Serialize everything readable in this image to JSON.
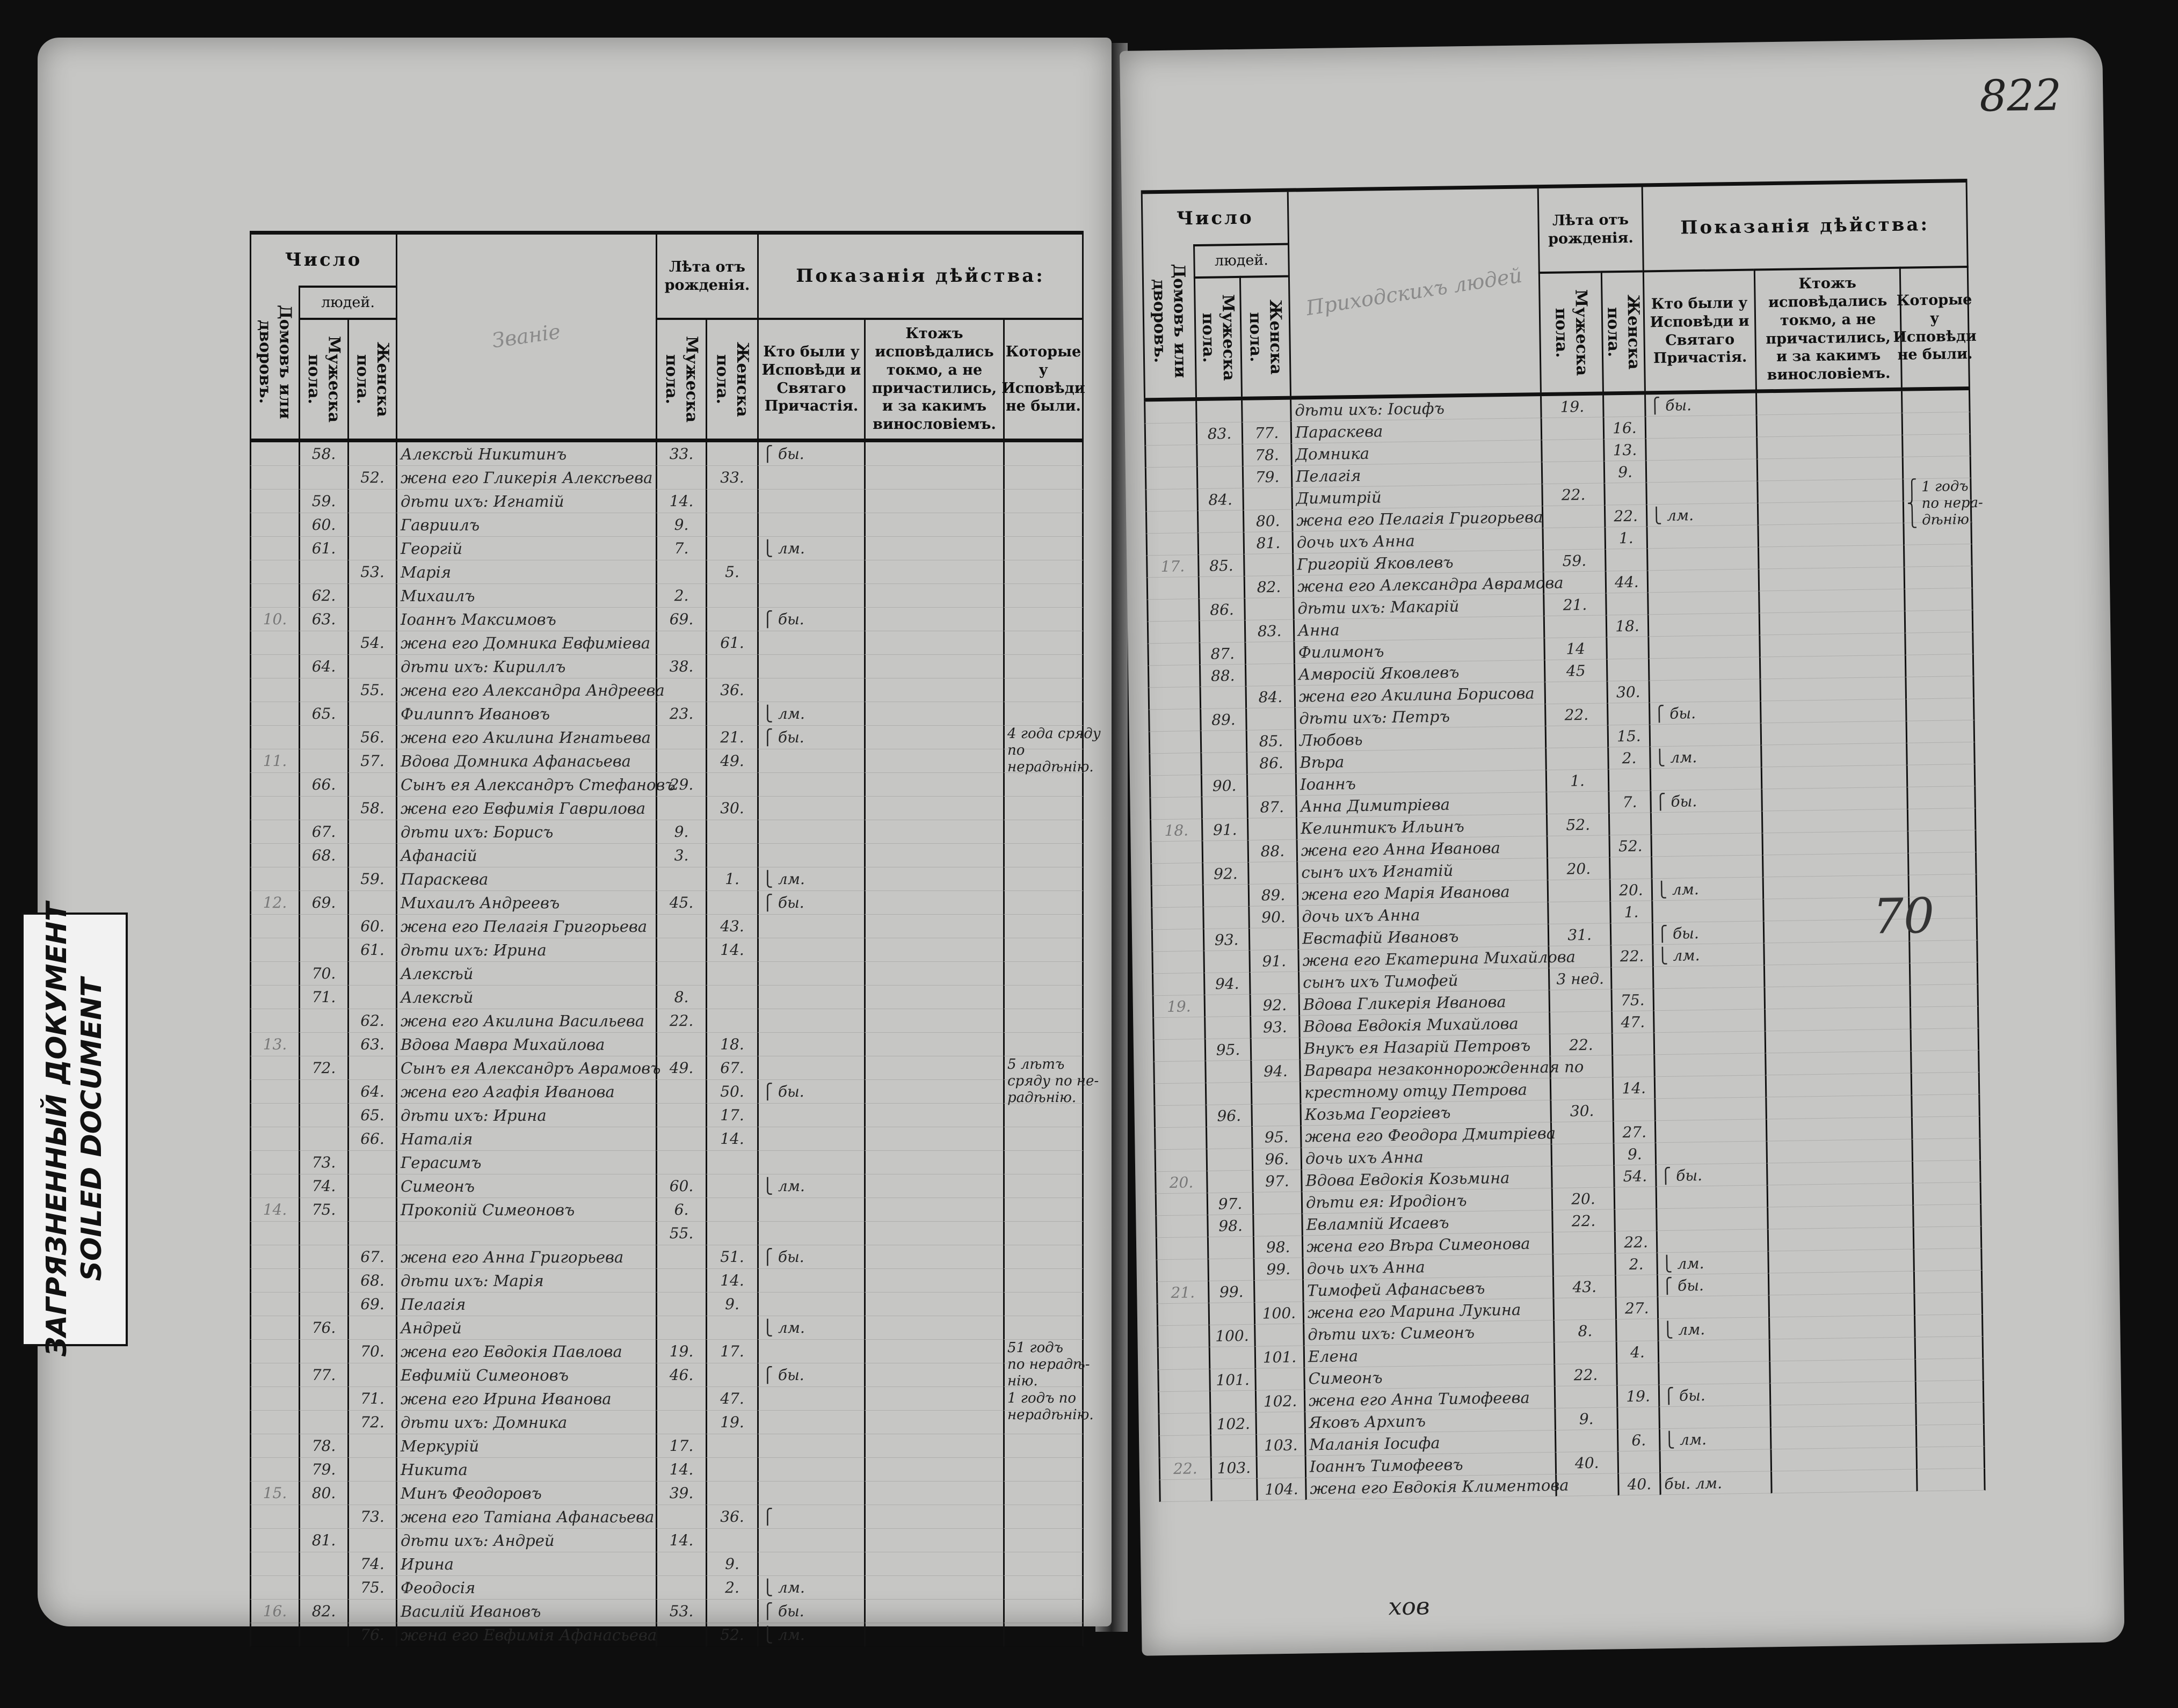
{
  "stamp": {
    "line1": "ЗАГРЯЗНЕННЫЙ ДОКУМЕНТ",
    "line2": "SOILED DOCUMENT"
  },
  "header": {
    "chislo": "Число",
    "lyudey": "людей.",
    "domov": "Домовъ или дворовъ.",
    "muzh_pola": "Мужеска пола.",
    "zhen_pola": "Женска пола.",
    "leta": "Лѣта отъ рожденія.",
    "age_m": "Мужеска пола.",
    "age_f": "Женска пола.",
    "pokazaniya": "Показанія дѣйства:",
    "col_kto": "Кто были у Исповѣди и Святаго Причастія.",
    "col_ktozh": "Ктожъ исповѣдались токмо, а не причастились, и за какимъ винословіемъ.",
    "col_kotorye": "Которые у Исповѣди не были."
  },
  "left_page": {
    "name_header": "Званіе",
    "rows": [
      {
        "h": "",
        "m": "58.",
        "f": "",
        "name": "Алексѣй Никитинъ",
        "ma": "33.",
        "fa": ""
      },
      {
        "h": "",
        "m": "",
        "f": "52.",
        "name": "жена его Гликерія Алексѣева",
        "ma": "",
        "fa": "33."
      },
      {
        "h": "",
        "m": "59.",
        "f": "",
        "name": "дѣти ихъ: Игнатій",
        "ma": "14.",
        "fa": ""
      },
      {
        "h": "",
        "m": "60.",
        "f": "",
        "name": "Гавриилъ",
        "ma": "9.",
        "fa": ""
      },
      {
        "h": "",
        "m": "61.",
        "f": "",
        "name": "Георгій",
        "ma": "7.",
        "fa": ""
      },
      {
        "h": "",
        "m": "",
        "f": "53.",
        "name": "Марія",
        "ma": "",
        "fa": "5."
      },
      {
        "h": "",
        "m": "62.",
        "f": "",
        "name": "Михаилъ",
        "ma": "2.",
        "fa": ""
      },
      {
        "h": "10.",
        "m": "63.",
        "f": "",
        "name": "Іоаннъ Максимовъ",
        "ma": "69.",
        "fa": ""
      },
      {
        "h": "",
        "m": "",
        "f": "54.",
        "name": "жена его Домника Евфиміева",
        "ma": "",
        "fa": "61."
      },
      {
        "h": "",
        "m": "64.",
        "f": "",
        "name": "дѣти ихъ: Кириллъ",
        "ma": "38.",
        "fa": ""
      },
      {
        "h": "",
        "m": "",
        "f": "55.",
        "name": "жена его Александра Андреева",
        "ma": "",
        "fa": "36."
      },
      {
        "h": "",
        "m": "65.",
        "f": "",
        "name": "Филиппъ Ивановъ",
        "ma": "23.",
        "fa": ""
      },
      {
        "h": "",
        "m": "",
        "f": "56.",
        "name": "жена его Акилина Игнатьева",
        "ma": "",
        "fa": "21."
      },
      {
        "h": "11.",
        "m": "",
        "f": "57.",
        "name": "Вдова Домника Афанасьева",
        "ma": "",
        "fa": "49."
      },
      {
        "h": "",
        "m": "66.",
        "f": "",
        "name": "Сынъ ея Александръ Стефановъ",
        "ma": "29.",
        "fa": ""
      },
      {
        "h": "",
        "m": "",
        "f": "58.",
        "name": "жена его Евфимія Гаврилова",
        "ma": "",
        "fa": "30."
      },
      {
        "h": "",
        "m": "67.",
        "f": "",
        "name": "дѣти ихъ: Борисъ",
        "ma": "9.",
        "fa": ""
      },
      {
        "h": "",
        "m": "68.",
        "f": "",
        "name": "Афанасій",
        "ma": "3.",
        "fa": ""
      },
      {
        "h": "",
        "m": "",
        "f": "59.",
        "name": "Параскева",
        "ma": "",
        "fa": "1."
      },
      {
        "h": "12.",
        "m": "69.",
        "f": "",
        "name": "Михаилъ Андреевъ",
        "ma": "45.",
        "fa": ""
      },
      {
        "h": "",
        "m": "",
        "f": "60.",
        "name": "жена его Пелагія Григорьева",
        "ma": "",
        "fa": "43."
      },
      {
        "h": "",
        "m": "",
        "f": "61.",
        "name": "дѣти ихъ: Ирина",
        "ma": "",
        "fa": "14."
      },
      {
        "h": "",
        "m": "70.",
        "f": "",
        "name": "Алексѣй",
        "ma": "",
        "fa": ""
      },
      {
        "h": "",
        "m": "71.",
        "f": "",
        "name": "Алексѣй",
        "ma": "8.",
        "fa": ""
      },
      {
        "h": "",
        "m": "",
        "f": "62.",
        "name": "жена его Акилина Васильева",
        "ma": "22.",
        "fa": ""
      },
      {
        "h": "13.",
        "m": "",
        "f": "63.",
        "name": "Вдова Мавра Михайлова",
        "ma": "",
        "fa": "18."
      },
      {
        "h": "",
        "m": "72.",
        "f": "",
        "name": "Сынъ ея Александръ Аврамовъ",
        "ma": "49.",
        "fa": "67."
      },
      {
        "h": "",
        "m": "",
        "f": "64.",
        "name": "жена его Агафія Иванова",
        "ma": "",
        "fa": "50."
      },
      {
        "h": "",
        "m": "",
        "f": "65.",
        "name": "дѣти ихъ: Ирина",
        "ma": "",
        "fa": "17."
      },
      {
        "h": "",
        "m": "",
        "f": "66.",
        "name": "Наталія",
        "ma": "",
        "fa": "14."
      },
      {
        "h": "",
        "m": "73.",
        "f": "",
        "name": "Герасимъ",
        "ma": "",
        "fa": ""
      },
      {
        "h": "",
        "m": "74.",
        "f": "",
        "name": "Симеонъ",
        "ma": "60.",
        "fa": ""
      },
      {
        "h": "14.",
        "m": "75.",
        "f": "",
        "name": "Прокопій Симеоновъ",
        "ma": "6.",
        "fa": ""
      },
      {
        "h": "",
        "m": "",
        "f": "",
        "name": "",
        "ma": "55.",
        "fa": ""
      },
      {
        "h": "",
        "m": "",
        "f": "67.",
        "name": "жена его Анна Григорьева",
        "ma": "",
        "fa": "51."
      },
      {
        "h": "",
        "m": "",
        "f": "68.",
        "name": "дѣти ихъ: Марія",
        "ma": "",
        "fa": "14."
      },
      {
        "h": "",
        "m": "",
        "f": "69.",
        "name": "Пелагія",
        "ma": "",
        "fa": "9."
      },
      {
        "h": "",
        "m": "76.",
        "f": "",
        "name": "Андрей",
        "ma": "",
        "fa": ""
      },
      {
        "h": "",
        "m": "",
        "f": "70.",
        "name": "жена его Евдокія Павлова",
        "ma": "19.",
        "fa": "17."
      },
      {
        "h": "",
        "m": "77.",
        "f": "",
        "name": "Евфимій Симеоновъ",
        "ma": "46.",
        "fa": ""
      },
      {
        "h": "",
        "m": "",
        "f": "71.",
        "name": "жена его Ирина Иванова",
        "ma": "",
        "fa": "47."
      },
      {
        "h": "",
        "m": "",
        "f": "72.",
        "name": "дѣти ихъ: Домника",
        "ma": "",
        "fa": "19."
      },
      {
        "h": "",
        "m": "78.",
        "f": "",
        "name": "Меркурій",
        "ma": "17.",
        "fa": ""
      },
      {
        "h": "",
        "m": "79.",
        "f": "",
        "name": "Никита",
        "ma": "14.",
        "fa": ""
      },
      {
        "h": "15.",
        "m": "80.",
        "f": "",
        "name": "Минъ Феодоровъ",
        "ma": "39.",
        "fa": ""
      },
      {
        "h": "",
        "m": "",
        "f": "73.",
        "name": "жена его Татіана Афанасьева",
        "ma": "",
        "fa": "36."
      },
      {
        "h": "",
        "m": "81.",
        "f": "",
        "name": "дѣти ихъ: Андрей",
        "ma": "14.",
        "fa": ""
      },
      {
        "h": "",
        "m": "",
        "f": "74.",
        "name": "Ирина",
        "ma": "",
        "fa": "9."
      },
      {
        "h": "",
        "m": "",
        "f": "75.",
        "name": "Феодосія",
        "ma": "",
        "fa": "2."
      },
      {
        "h": "16.",
        "m": "82.",
        "f": "",
        "name": "Василій Ивановъ",
        "ma": "53.",
        "fa": ""
      },
      {
        "h": "",
        "m": "",
        "f": "76.",
        "name": "жена его Евфимія Афанасьева",
        "ma": "",
        "fa": "52."
      }
    ],
    "marks": [
      {
        "row": 0,
        "text": "⎧ бы."
      },
      {
        "row": 4,
        "text": "⎩ лм."
      },
      {
        "row": 7,
        "text": "⎧ бы."
      },
      {
        "row": 11,
        "text": "⎩ лм."
      },
      {
        "row": 12,
        "text": "⎧ бы."
      },
      {
        "row": 18,
        "text": "⎩ лм."
      },
      {
        "row": 19,
        "text": "⎧ бы."
      },
      {
        "row": 27,
        "text": "⎧ бы."
      },
      {
        "row": 31,
        "text": "⎩ лм."
      },
      {
        "row": 34,
        "text": "⎧ бы."
      },
      {
        "row": 37,
        "text": "⎩ лм."
      },
      {
        "row": 39,
        "text": "⎧ бы."
      },
      {
        "row": 45,
        "text": "⎧"
      },
      {
        "row": 48,
        "text": "⎩ лм."
      },
      {
        "row": 49,
        "text": "⎧ бы."
      },
      {
        "row": 50,
        "text": "⎩ лм."
      }
    ],
    "notes": [
      {
        "row": 12,
        "text": "4 года сряду\nпо нерадѣнію."
      },
      {
        "row": 26,
        "text": "5 лѣтъ\nсряду по не-\nрадѣнію."
      },
      {
        "row": 38,
        "text": "51 годъ\nпо нерадѣ-\nнію.\n1 годъ по\nнерадѣнію."
      }
    ]
  },
  "right_page": {
    "page_number": "822",
    "name_header": "Приходскихъ людей",
    "center_mark": "70",
    "footer_mark": "хов",
    "rows": [
      {
        "h": "",
        "m": "",
        "f": "",
        "name": "дѣти ихъ: Іосифъ",
        "ma": "19.",
        "fa": ""
      },
      {
        "h": "",
        "m": "83.",
        "f": "77.",
        "name": "Параскева",
        "ma": "",
        "fa": "16."
      },
      {
        "h": "",
        "m": "",
        "f": "78.",
        "name": "Домника",
        "ma": "",
        "fa": "13."
      },
      {
        "h": "",
        "m": "",
        "f": "79.",
        "name": "Пелагія",
        "ma": "",
        "fa": "9."
      },
      {
        "h": "",
        "m": "84.",
        "f": "",
        "name": "Димитрій",
        "ma": "22.",
        "fa": ""
      },
      {
        "h": "",
        "m": "",
        "f": "80.",
        "name": "жена его Пелагія Григорьева",
        "ma": "",
        "fa": "22."
      },
      {
        "h": "",
        "m": "",
        "f": "81.",
        "name": "дочь ихъ Анна",
        "ma": "",
        "fa": "1."
      },
      {
        "h": "17.",
        "m": "85.",
        "f": "",
        "name": "Григорій Яковлевъ",
        "ma": "59.",
        "fa": ""
      },
      {
        "h": "",
        "m": "",
        "f": "82.",
        "name": "жена его Александра Аврамова",
        "ma": "",
        "fa": "44."
      },
      {
        "h": "",
        "m": "86.",
        "f": "",
        "name": "дѣти ихъ: Макарій",
        "ma": "21.",
        "fa": ""
      },
      {
        "h": "",
        "m": "",
        "f": "83.",
        "name": "Анна",
        "ma": "",
        "fa": "18."
      },
      {
        "h": "",
        "m": "87.",
        "f": "",
        "name": "Филимонъ",
        "ma": "14",
        "fa": ""
      },
      {
        "h": "",
        "m": "88.",
        "f": "",
        "name": "Амвросій Яковлевъ",
        "ma": "45",
        "fa": ""
      },
      {
        "h": "",
        "m": "",
        "f": "84.",
        "name": "жена его Акилина Борисова",
        "ma": "",
        "fa": "30."
      },
      {
        "h": "",
        "m": "89.",
        "f": "",
        "name": "дѣти ихъ: Петръ",
        "ma": "22.",
        "fa": ""
      },
      {
        "h": "",
        "m": "",
        "f": "85.",
        "name": "Любовь",
        "ma": "",
        "fa": "15."
      },
      {
        "h": "",
        "m": "",
        "f": "86.",
        "name": "Вѣра",
        "ma": "",
        "fa": "2."
      },
      {
        "h": "",
        "m": "90.",
        "f": "",
        "name": "Іоаннъ",
        "ma": "1.",
        "fa": ""
      },
      {
        "h": "",
        "m": "",
        "f": "87.",
        "name": "Анна Димитріева",
        "ma": "",
        "fa": "7."
      },
      {
        "h": "18.",
        "m": "91.",
        "f": "",
        "name": "Келинтикъ Ильинъ",
        "ma": "52.",
        "fa": ""
      },
      {
        "h": "",
        "m": "",
        "f": "88.",
        "name": "жена его Анна Иванова",
        "ma": "",
        "fa": "52."
      },
      {
        "h": "",
        "m": "92.",
        "f": "",
        "name": "сынъ ихъ Игнатій",
        "ma": "20.",
        "fa": ""
      },
      {
        "h": "",
        "m": "",
        "f": "89.",
        "name": "жена его Марія Иванова",
        "ma": "",
        "fa": "20."
      },
      {
        "h": "",
        "m": "",
        "f": "90.",
        "name": "дочь ихъ Анна",
        "ma": "",
        "fa": "1."
      },
      {
        "h": "",
        "m": "93.",
        "f": "",
        "name": "Евстафій Ивановъ",
        "ma": "31.",
        "fa": ""
      },
      {
        "h": "",
        "m": "",
        "f": "91.",
        "name": "жена его Екатерина Михайлова",
        "ma": "",
        "fa": "22."
      },
      {
        "h": "",
        "m": "94.",
        "f": "",
        "name": "сынъ ихъ Тимофей",
        "ma": "3 нед.",
        "fa": ""
      },
      {
        "h": "19.",
        "m": "",
        "f": "92.",
        "name": "Вдова Гликерія Иванова",
        "ma": "",
        "fa": "75."
      },
      {
        "h": "",
        "m": "",
        "f": "93.",
        "name": "Вдова Евдокія Михайлова",
        "ma": "",
        "fa": "47."
      },
      {
        "h": "",
        "m": "95.",
        "f": "",
        "name": "Внукъ ея Назарій Петровъ",
        "ma": "22.",
        "fa": ""
      },
      {
        "h": "",
        "m": "",
        "f": "94.",
        "name": "Варвара незаконнорожденная по",
        "ma": "",
        "fa": ""
      },
      {
        "h": "",
        "m": "",
        "f": "",
        "name": "крестному отцу Петрова",
        "ma": "",
        "fa": "14."
      },
      {
        "h": "",
        "m": "96.",
        "f": "",
        "name": "Козьма Георгіевъ",
        "ma": "30.",
        "fa": ""
      },
      {
        "h": "",
        "m": "",
        "f": "95.",
        "name": "жена его Феодора Дмитріева",
        "ma": "",
        "fa": "27."
      },
      {
        "h": "",
        "m": "",
        "f": "96.",
        "name": "дочь ихъ Анна",
        "ma": "",
        "fa": "9."
      },
      {
        "h": "20.",
        "m": "",
        "f": "97.",
        "name": "Вдова Евдокія Козьмина",
        "ma": "",
        "fa": "54."
      },
      {
        "h": "",
        "m": "97.",
        "f": "",
        "name": "дѣти ея: Иродіонъ",
        "ma": "20.",
        "fa": ""
      },
      {
        "h": "",
        "m": "98.",
        "f": "",
        "name": "Евлампій Исаевъ",
        "ma": "22.",
        "fa": ""
      },
      {
        "h": "",
        "m": "",
        "f": "98.",
        "name": "жена его Вѣра Симеонова",
        "ma": "",
        "fa": "22."
      },
      {
        "h": "",
        "m": "",
        "f": "99.",
        "name": "дочь ихъ Анна",
        "ma": "",
        "fa": "2."
      },
      {
        "h": "21.",
        "m": "99.",
        "f": "",
        "name": "Тимофей Афанасьевъ",
        "ma": "43.",
        "fa": ""
      },
      {
        "h": "",
        "m": "",
        "f": "100.",
        "name": "жена его Марина Лукина",
        "ma": "",
        "fa": "27."
      },
      {
        "h": "",
        "m": "100.",
        "f": "",
        "name": "дѣти ихъ: Симеонъ",
        "ma": "8.",
        "fa": ""
      },
      {
        "h": "",
        "m": "",
        "f": "101.",
        "name": "Елена",
        "ma": "",
        "fa": "4."
      },
      {
        "h": "",
        "m": "101.",
        "f": "",
        "name": "Симеонъ",
        "ma": "22.",
        "fa": ""
      },
      {
        "h": "",
        "m": "",
        "f": "102.",
        "name": "жена его Анна Тимофеева",
        "ma": "",
        "fa": "19."
      },
      {
        "h": "",
        "m": "102.",
        "f": "",
        "name": "Яковъ    Архипъ",
        "ma": "9.",
        "fa": ""
      },
      {
        "h": "",
        "m": "",
        "f": "103.",
        "name": "Маланія   Іосифа",
        "ma": "",
        "fa": "6."
      },
      {
        "h": "22.",
        "m": "103.",
        "f": "",
        "name": "Іоаннъ Тимофеевъ",
        "ma": "40.",
        "fa": ""
      },
      {
        "h": "",
        "m": "",
        "f": "104.",
        "name": "жена его Евдокія Климентова",
        "ma": "",
        "fa": "40."
      }
    ],
    "marks": [
      {
        "row": 0,
        "text": "⎧ бы."
      },
      {
        "row": 5,
        "text": "⎩ лм."
      },
      {
        "row": 14,
        "text": "⎧ бы."
      },
      {
        "row": 16,
        "text": "⎩ лм."
      },
      {
        "row": 18,
        "text": "⎧ бы."
      },
      {
        "row": 22,
        "text": "⎩ лм."
      },
      {
        "row": 24,
        "text": "⎧ бы."
      },
      {
        "row": 25,
        "text": "⎩ лм."
      },
      {
        "row": 35,
        "text": "⎧ бы."
      },
      {
        "row": 39,
        "text": "⎩ лм."
      },
      {
        "row": 40,
        "text": "⎧ бы."
      },
      {
        "row": 42,
        "text": "⎩ лм."
      },
      {
        "row": 45,
        "text": "⎧ бы."
      },
      {
        "row": 47,
        "text": "⎩ лм."
      },
      {
        "row": 49,
        "text": "бы. лм."
      }
    ],
    "notes": [
      {
        "row": 4,
        "text": "⎧ 1 годъ\n⎨ по нера-\n⎩ дѣнію."
      }
    ]
  }
}
